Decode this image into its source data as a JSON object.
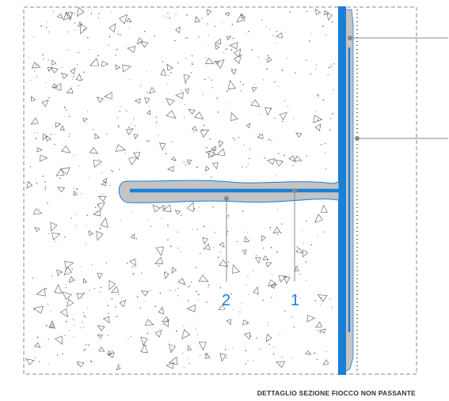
{
  "caption": "DETTAGLIO SEZIONE FIOCCO  NON PASSANTE",
  "callouts": [
    {
      "id": "1",
      "label": "1"
    },
    {
      "id": "2",
      "label": "2"
    }
  ],
  "colors": {
    "membrane": "#1a7fd6",
    "resin": "#c4c4c4",
    "leader": "#8a8a8a",
    "concrete_marks": "#555555",
    "frame": "#888888"
  }
}
